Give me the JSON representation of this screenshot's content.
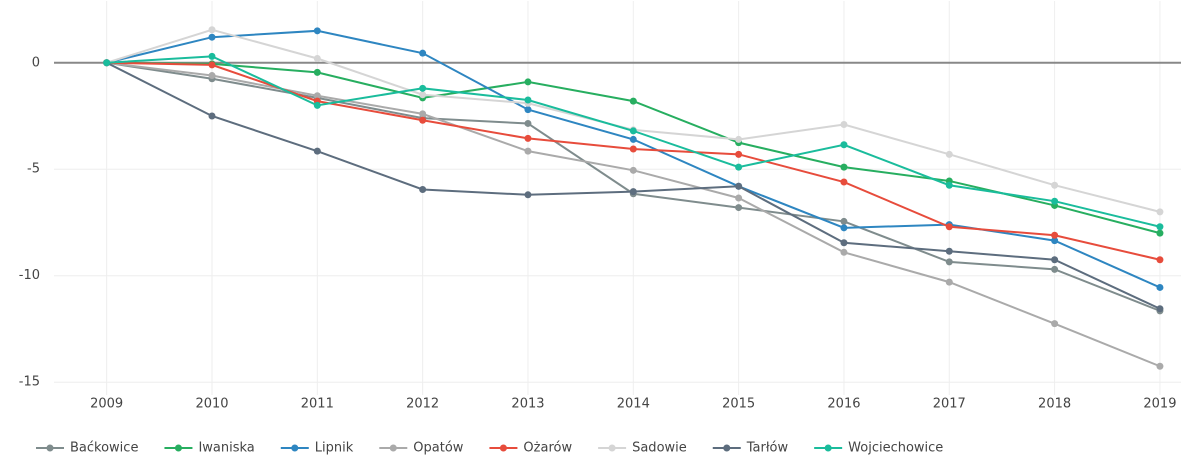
{
  "chart_data": {
    "type": "line",
    "x": [
      2009,
      2010,
      2011,
      2012,
      2013,
      2014,
      2015,
      2016,
      2017,
      2018,
      2019
    ],
    "series": [
      {
        "name": "Baćkowice",
        "color": "#7f8c8d",
        "values": [
          0,
          -0.75,
          -1.65,
          -2.6,
          -2.85,
          -6.15,
          -6.8,
          -7.45,
          -9.35,
          -9.7,
          -11.65
        ]
      },
      {
        "name": "Iwaniska",
        "color": "#27ae60",
        "values": [
          0,
          -0.05,
          -0.45,
          -1.65,
          -0.9,
          -1.8,
          -3.75,
          -4.9,
          -5.55,
          -6.7,
          -8.0
        ]
      },
      {
        "name": "Lipnik",
        "color": "#2e86c1",
        "values": [
          0,
          1.2,
          1.5,
          0.45,
          -2.2,
          -3.6,
          -5.8,
          -7.75,
          -7.6,
          -8.35,
          -10.55
        ]
      },
      {
        "name": "Opatów",
        "color": "#aaaaaa",
        "values": [
          0,
          -0.6,
          -1.55,
          -2.4,
          -4.15,
          -5.05,
          -6.35,
          -8.9,
          -10.3,
          -12.25,
          -14.25
        ]
      },
      {
        "name": "Ożarów",
        "color": "#e74c3c",
        "values": [
          0,
          -0.1,
          -1.8,
          -2.7,
          -3.55,
          -4.05,
          -4.3,
          -5.6,
          -7.7,
          -8.1,
          -9.25
        ]
      },
      {
        "name": "Sadowie",
        "color": "#d5d5d5",
        "values": [
          0,
          1.55,
          0.2,
          -1.5,
          -1.9,
          -3.15,
          -3.6,
          -2.9,
          -4.3,
          -5.75,
          -7.0
        ]
      },
      {
        "name": "Tarłów",
        "color": "#5d6d7e",
        "values": [
          0,
          -2.5,
          -4.15,
          -5.95,
          -6.2,
          -6.05,
          -5.8,
          -8.45,
          -8.85,
          -9.25,
          -11.55
        ]
      },
      {
        "name": "Wojciechowice",
        "color": "#1abc9c",
        "values": [
          0,
          0.3,
          -2.0,
          -1.2,
          -1.75,
          -3.2,
          -4.9,
          -3.85,
          -5.75,
          -6.5,
          -7.7
        ]
      }
    ],
    "xlim": [
      2008.5,
      2019.2
    ],
    "xticks": [
      2009,
      2010,
      2011,
      2012,
      2013,
      2014,
      2015,
      2016,
      2017,
      2018,
      2019
    ],
    "ylim": [
      -15.6,
      2.9
    ],
    "yticks": [
      -15,
      -10,
      -5,
      0
    ],
    "grid": true,
    "zeroline": true,
    "legend": "bottom-left"
  }
}
